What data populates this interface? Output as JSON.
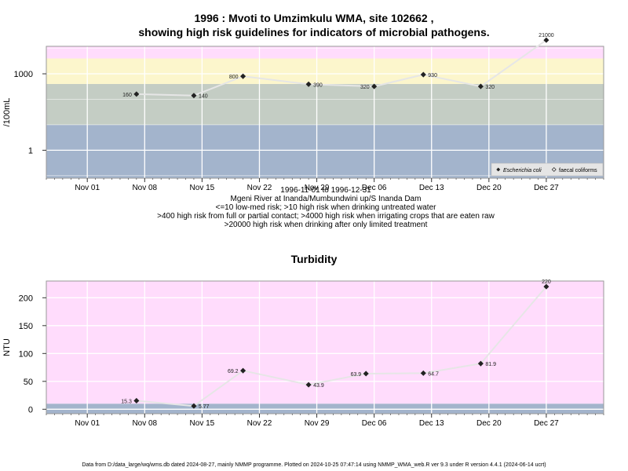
{
  "chart_data": [
    {
      "type": "line",
      "title": "1996 : Mvoti to Umzimkulu WMA, site 102662 ,",
      "subtitle": "showing high risk guidelines for indicators of microbial pathogens.",
      "ylabel": "/100mL",
      "yscale": "log10",
      "ylim": [
        0.08,
        12000
      ],
      "yticks": [
        {
          "value": 1,
          "label": "1"
        },
        {
          "value": 1000,
          "label": "1000"
        }
      ],
      "xlim": [
        "1996-10-27",
        "1997-01-03"
      ],
      "xticks": [
        {
          "date": "1996-11-01",
          "label": "Nov 01"
        },
        {
          "date": "1996-11-08",
          "label": "Nov 08"
        },
        {
          "date": "1996-11-15",
          "label": "Nov 15"
        },
        {
          "date": "1996-11-22",
          "label": "Nov 22"
        },
        {
          "date": "1996-11-29",
          "label": "Nov 29"
        },
        {
          "date": "1996-12-06",
          "label": "Dec 06"
        },
        {
          "date": "1996-12-13",
          "label": "Dec 13"
        },
        {
          "date": "1996-12-20",
          "label": "Dec 20"
        },
        {
          "date": "1996-12-27",
          "label": "Dec 27"
        }
      ],
      "risk_bands": [
        {
          "from": 0.08,
          "to": 10,
          "color": "#a3b4cc"
        },
        {
          "from": 10,
          "to": 400,
          "color": "#c4cdc4"
        },
        {
          "from": 400,
          "to": 4000,
          "color": "#fcf6cc"
        },
        {
          "from": 4000,
          "to": 20000,
          "color": "#ffdcfc"
        },
        {
          "from": 20000,
          "to": 100000,
          "color": "#ffcad2"
        }
      ],
      "grid": true,
      "legend_position": "bottom-right",
      "legend": [
        "Escherichia coli",
        "faecal coliforms"
      ],
      "series": [
        {
          "name": "Escherichia coli",
          "points": [
            {
              "date": "1996-11-07",
              "value": 160,
              "label": "160",
              "label_side": "left"
            },
            {
              "date": "1996-11-14",
              "value": 140,
              "label": "140",
              "label_side": "right"
            },
            {
              "date": "1996-11-20",
              "value": 800,
              "label": "800",
              "label_side": "left"
            },
            {
              "date": "1996-11-28",
              "value": 390,
              "label": "390",
              "label_side": "right"
            },
            {
              "date": "1996-12-06",
              "value": 320,
              "label": "320",
              "label_side": "left"
            },
            {
              "date": "1996-12-12",
              "value": 930,
              "label": "930",
              "label_side": "right"
            },
            {
              "date": "1996-12-19",
              "value": 320,
              "label": "320",
              "label_side": "right"
            },
            {
              "date": "1996-12-27",
              "value": 21000,
              "label": "21000",
              "label_side": "above"
            }
          ]
        }
      ]
    },
    {
      "type": "line",
      "title": "Turbidity",
      "ylabel": "NTU",
      "ylim": [
        -8,
        230
      ],
      "yticks": [
        {
          "value": 0,
          "label": "0"
        },
        {
          "value": 50,
          "label": "50"
        },
        {
          "value": 100,
          "label": "100"
        },
        {
          "value": 150,
          "label": "150"
        },
        {
          "value": 200,
          "label": "200"
        }
      ],
      "xlim": [
        "1996-10-27",
        "1997-01-03"
      ],
      "xticks": [
        {
          "date": "1996-11-01",
          "label": "Nov 01"
        },
        {
          "date": "1996-11-08",
          "label": "Nov 08"
        },
        {
          "date": "1996-11-15",
          "label": "Nov 15"
        },
        {
          "date": "1996-11-22",
          "label": "Nov 22"
        },
        {
          "date": "1996-11-29",
          "label": "Nov 29"
        },
        {
          "date": "1996-12-06",
          "label": "Dec 06"
        },
        {
          "date": "1996-12-13",
          "label": "Dec 13"
        },
        {
          "date": "1996-12-20",
          "label": "Dec 20"
        },
        {
          "date": "1996-12-27",
          "label": "Dec 27"
        }
      ],
      "risk_bands": [
        {
          "from": -8,
          "to": 10,
          "color": "#a3b4cc"
        },
        {
          "from": 10,
          "to": 230,
          "color": "#ffdcfc"
        }
      ],
      "grid": true,
      "series": [
        {
          "points": [
            {
              "date": "1996-11-07",
              "value": 15.3,
              "label": "15.3",
              "label_side": "left"
            },
            {
              "date": "1996-11-14",
              "value": 5.77,
              "label": "5.77",
              "label_side": "right"
            },
            {
              "date": "1996-11-20",
              "value": 69.2,
              "label": "69.2",
              "label_side": "left"
            },
            {
              "date": "1996-11-28",
              "value": 43.9,
              "label": "43.9",
              "label_side": "right"
            },
            {
              "date": "1996-12-05",
              "value": 63.9,
              "label": "63.9",
              "label_side": "left"
            },
            {
              "date": "1996-12-12",
              "value": 64.7,
              "label": "64.7",
              "label_side": "right"
            },
            {
              "date": "1996-12-19",
              "value": 81.9,
              "label": "81.9",
              "label_side": "right"
            },
            {
              "date": "1996-12-27",
              "value": 220,
              "label": "220",
              "label_side": "above"
            }
          ]
        }
      ]
    }
  ],
  "captions": [
    "1996-11-01 to 1996-12-31",
    "Mgeni River at Inanda/Mumbundwini up/S Inanda Dam",
    "<=10 low-med risk; >10 high risk when drinking untreated water",
    ">400 high risk from full or partial contact; >4000 high risk when irrigating crops that are eaten raw",
    ">20000 high risk when drinking after only limited treatment"
  ],
  "footer": "Data from D:/data_large/wq/wms.db dated 2024-08-27, mainly NMMP programme. Plotted on 2024-10-25 07:47:14 using NMMP_WMA_web.R ver 9.3 under R version 4.4.1 (2024-06-14 ucrt)"
}
